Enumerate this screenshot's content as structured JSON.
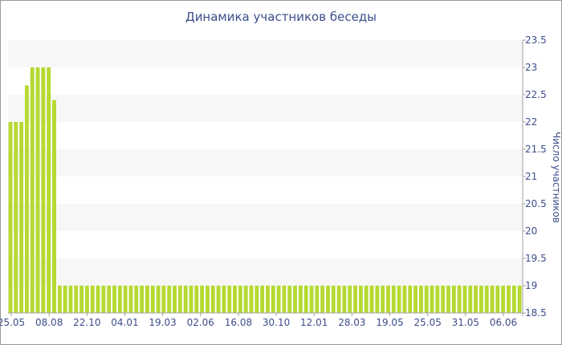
{
  "chart_data": {
    "type": "bar",
    "title": "Динамика участников беседы",
    "xlabel": "",
    "ylabel": "Число участников",
    "ylim": [
      18.5,
      23.5
    ],
    "yticks": [
      18.5,
      19,
      19.5,
      20,
      20.5,
      21,
      21.5,
      22,
      22.5,
      23,
      23.5
    ],
    "ytick_labels": [
      "18.5",
      "19",
      "19.5",
      "20",
      "20.5",
      "21",
      "21.5",
      "22",
      "22.5",
      "23",
      "23.5"
    ],
    "xtick_labels": [
      "25.05",
      "08.08",
      "22.10",
      "04.01",
      "19.03",
      "02.06",
      "16.08",
      "30.10",
      "12.01",
      "28.03",
      "19.05",
      "25.05",
      "31.05",
      "06.06"
    ],
    "y_axis_side": "right",
    "grid": "alternating horizontal bands",
    "values": [
      22,
      22,
      22,
      22.67,
      23,
      23,
      23,
      23,
      22.4,
      19,
      19,
      19,
      19,
      19,
      19,
      19,
      19,
      19,
      19,
      19,
      19,
      19,
      19,
      19,
      19,
      19,
      19,
      19,
      19,
      19,
      19,
      19,
      19,
      19,
      19,
      19,
      19,
      19,
      19,
      19,
      19,
      19,
      19,
      19,
      19,
      19,
      19,
      19,
      19,
      19,
      19,
      19,
      19,
      19,
      19,
      19,
      19,
      19,
      19,
      19,
      19,
      19,
      19,
      19,
      19,
      19,
      19,
      19,
      19,
      19,
      19,
      19,
      19,
      19,
      19,
      19,
      19,
      19,
      19,
      19,
      19,
      19,
      19,
      19,
      19,
      19,
      19,
      19,
      19,
      19,
      19,
      19,
      19,
      19
    ],
    "colors": {
      "bar": "#b5d932",
      "band": "#f7f7f7",
      "text": "#3c4d8a",
      "axis": "#a0a0a0"
    }
  }
}
